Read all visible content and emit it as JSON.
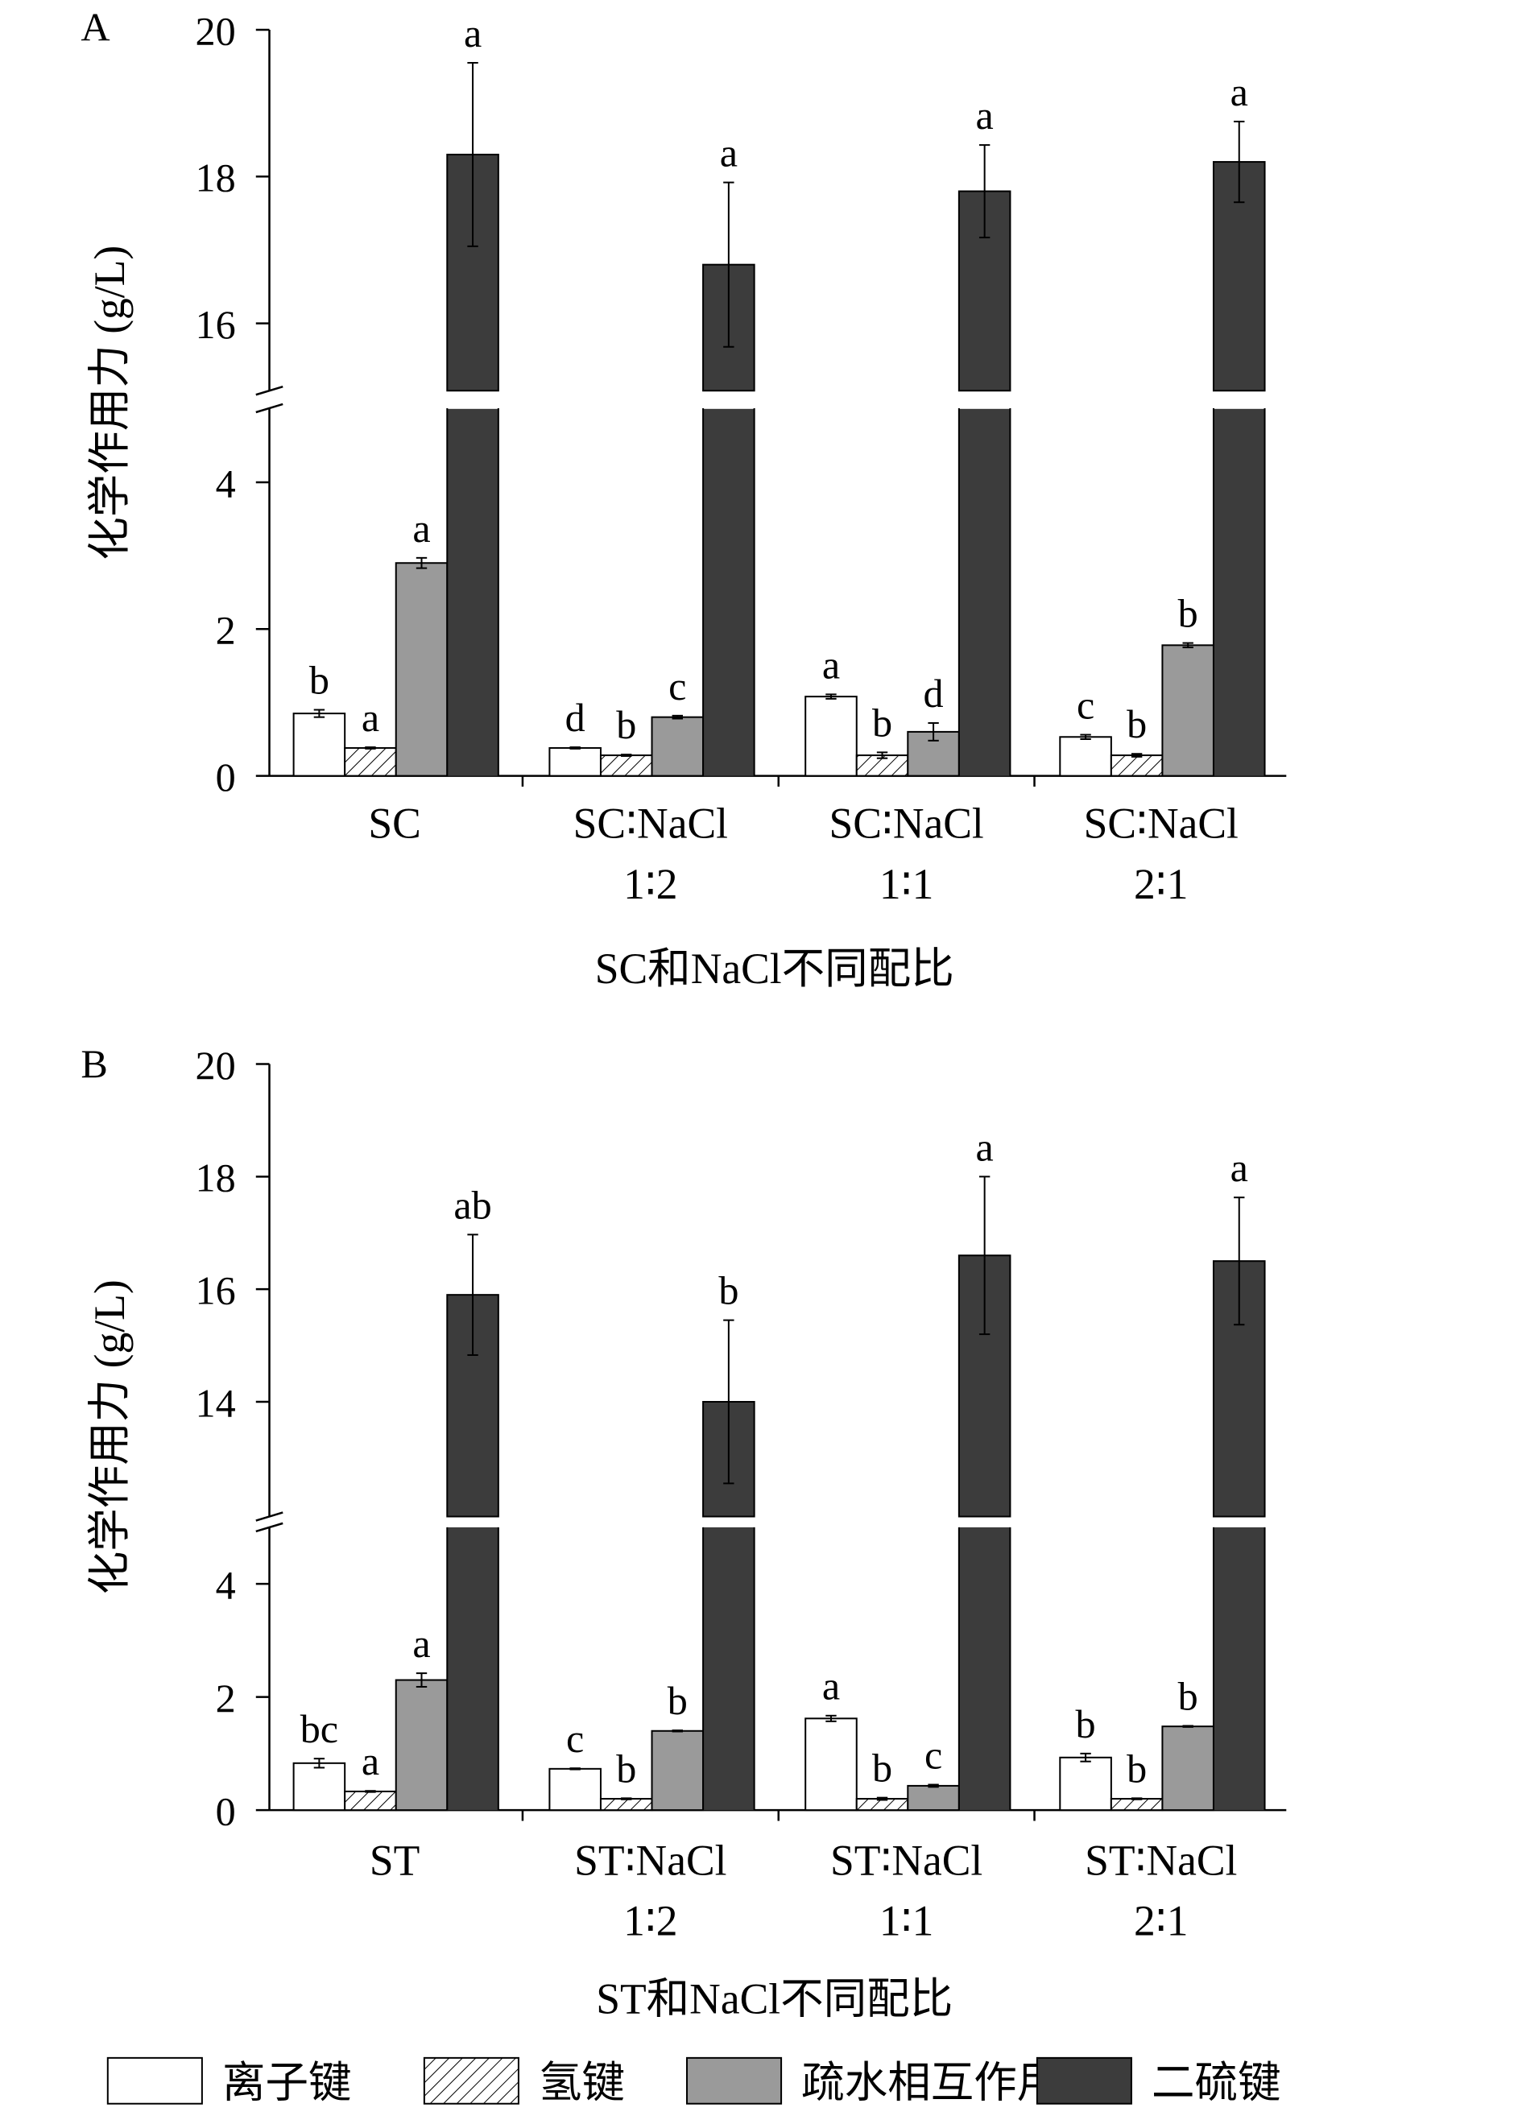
{
  "chart_data": [
    {
      "type": "bar",
      "panel": "A",
      "xlabel": "SC和NaCl不同配比",
      "ylabel": "化学作用力 (g/L)",
      "categories": [
        [
          "SC"
        ],
        [
          "SC∶NaCl",
          "1∶2"
        ],
        [
          "SC∶NaCl",
          "1∶1"
        ],
        [
          "SC∶NaCl",
          "2∶1"
        ]
      ],
      "y_break": true,
      "ylim_lower": [
        0,
        5
      ],
      "ylim_upper": [
        15,
        20
      ],
      "yticks_lower": [
        0,
        2,
        4
      ],
      "yticks_upper": [
        16,
        18,
        20
      ],
      "series": [
        {
          "name": "离子键",
          "values": [
            0.85,
            0.38,
            1.08,
            0.53
          ],
          "errors": [
            0.05,
            0.01,
            0.03,
            0.03
          ],
          "letters": [
            "b",
            "d",
            "a",
            "c"
          ]
        },
        {
          "name": "氢键",
          "values": [
            0.38,
            0.28,
            0.28,
            0.28
          ],
          "errors": [
            0.01,
            0.01,
            0.04,
            0.02
          ],
          "letters": [
            "a",
            "b",
            "b",
            "b"
          ]
        },
        {
          "name": "疏水相互作用",
          "values": [
            2.9,
            0.8,
            0.6,
            1.78
          ],
          "errors": [
            0.07,
            0.02,
            0.12,
            0.03
          ],
          "letters": [
            "a",
            "c",
            "d",
            "b"
          ]
        },
        {
          "name": "二硫键",
          "values": [
            18.3,
            16.8,
            17.8,
            18.2
          ],
          "errors": [
            1.25,
            1.12,
            0.63,
            0.55
          ],
          "letters": [
            "a",
            "a",
            "a",
            "a"
          ]
        }
      ]
    },
    {
      "type": "bar",
      "panel": "B",
      "xlabel": "ST和NaCl不同配比",
      "ylabel": "化学作用力 (g/L)",
      "categories": [
        [
          "ST"
        ],
        [
          "ST∶NaCl",
          "1∶2"
        ],
        [
          "ST∶NaCl",
          "1∶1"
        ],
        [
          "ST∶NaCl",
          "2∶1"
        ]
      ],
      "y_break": true,
      "ylim_lower": [
        0,
        5
      ],
      "ylim_upper": [
        12,
        20
      ],
      "yticks_lower": [
        0,
        2,
        4
      ],
      "yticks_upper": [
        14,
        16,
        18,
        20
      ],
      "series": [
        {
          "name": "离子键",
          "values": [
            0.83,
            0.73,
            1.62,
            0.93
          ],
          "errors": [
            0.08,
            0.01,
            0.05,
            0.07
          ],
          "letters": [
            "bc",
            "c",
            "a",
            "b"
          ]
        },
        {
          "name": "氢键",
          "values": [
            0.33,
            0.2,
            0.2,
            0.2
          ],
          "errors": [
            0.01,
            0.01,
            0.02,
            0.01
          ],
          "letters": [
            "a",
            "b",
            "b",
            "b"
          ]
        },
        {
          "name": "疏水相互作用",
          "values": [
            2.3,
            1.4,
            0.43,
            1.48
          ],
          "errors": [
            0.12,
            0.01,
            0.02,
            0.01
          ],
          "letters": [
            "a",
            "b",
            "c",
            "b"
          ]
        },
        {
          "name": "二硫键",
          "values": [
            15.9,
            14.0,
            16.6,
            16.5
          ],
          "errors": [
            1.07,
            1.45,
            1.4,
            1.13
          ],
          "letters": [
            "ab",
            "b",
            "a",
            "a"
          ]
        }
      ]
    }
  ],
  "legend": [
    {
      "label": "离子键",
      "fill": "#ffffff"
    },
    {
      "label": "氢键",
      "fill": "hatch"
    },
    {
      "label": "疏水相互作用",
      "fill": "#9a9a9a"
    },
    {
      "label": "二硫键",
      "fill": "#3c3c3c"
    }
  ],
  "colors": {
    "ionic": "#ffffff",
    "hydrophobic": "#9a9a9a",
    "disulfide": "#3c3c3c"
  }
}
